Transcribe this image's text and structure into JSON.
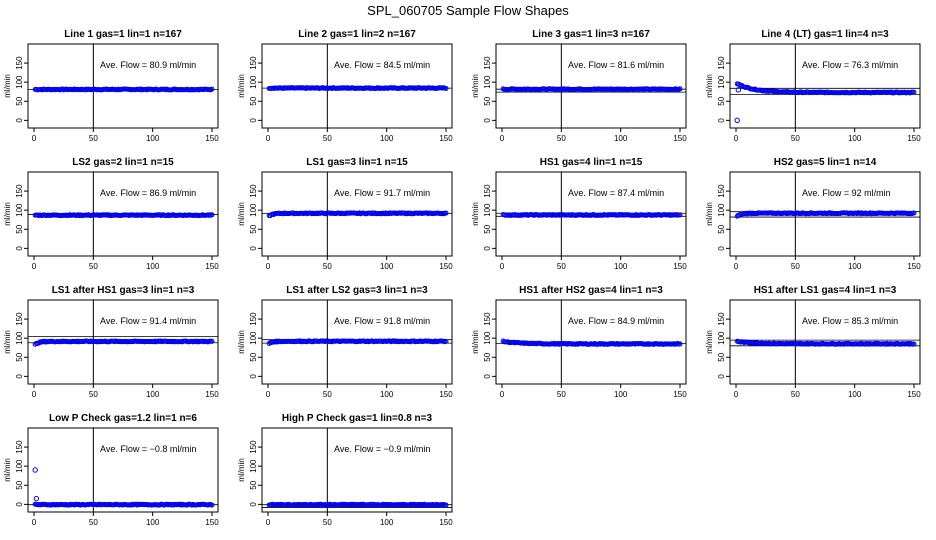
{
  "figure": {
    "title": "SPL_060705  Sample Flow Shapes"
  },
  "axes": {
    "ylabel": "ml/min",
    "xlim": [
      0,
      150
    ],
    "ylim": [
      -20,
      200
    ],
    "xticks": [
      "0",
      "50",
      "100",
      "150"
    ],
    "yticks": [
      "0",
      "50",
      "100",
      "150"
    ],
    "vline_x": 50,
    "annotation_prefix": "Ave. Flow = ",
    "annotation_unit": "ml/min"
  },
  "colors": {
    "points": "#0000ee",
    "axes": "#000000",
    "reference_lines": "#000000"
  },
  "chart_data": [
    {
      "type": "scatter",
      "title": "Line 1 gas=1 lin=1 n=167",
      "ylabel": "ml/min",
      "ave_flow": "80.9",
      "hlines": [
        80.9
      ],
      "profile": "flat",
      "y_plateau": 80.9,
      "y_start": 80.9,
      "outliers": []
    },
    {
      "type": "scatter",
      "title": "Line 2 gas=1 lin=2 n=167",
      "ylabel": "ml/min",
      "ave_flow": "84.5",
      "hlines": [
        84.5
      ],
      "profile": "flat",
      "y_plateau": 84.5,
      "y_start": 84.5,
      "outliers": []
    },
    {
      "type": "scatter",
      "title": "Line 3 gas=1 lin=3 n=167",
      "ylabel": "ml/min",
      "ave_flow": "81.6",
      "hlines": [
        81.6,
        74
      ],
      "profile": "flat",
      "y_plateau": 81.6,
      "y_start": 81.6,
      "outliers": []
    },
    {
      "type": "scatter",
      "title": "Line 4 (LT) gas=1 lin=4 n=3",
      "ylabel": "ml/min",
      "ave_flow": "76.3",
      "hlines": [
        84,
        68
      ],
      "profile": "decay",
      "y_plateau": 73,
      "y_start": 98,
      "outliers": [
        [
          1,
          0
        ],
        [
          2,
          80
        ]
      ]
    },
    {
      "type": "scatter",
      "title": "LS2 gas=2 lin=1 n=15",
      "ylabel": "ml/min",
      "ave_flow": "86.9",
      "hlines": [
        88.9
      ],
      "profile": "flat",
      "y_plateau": 86.9,
      "y_start": 86.9,
      "outliers": []
    },
    {
      "type": "scatter",
      "title": "LS1 gas=3 lin=1 n=15",
      "ylabel": "ml/min",
      "ave_flow": "91.7",
      "hlines": [
        91.7
      ],
      "profile": "rise",
      "y_plateau": 91.7,
      "y_start": 82,
      "outliers": []
    },
    {
      "type": "scatter",
      "title": "HS1 gas=4 lin=1 n=15",
      "ylabel": "ml/min",
      "ave_flow": "87.4",
      "hlines": [
        92,
        84
      ],
      "profile": "flat",
      "y_plateau": 87.4,
      "y_start": 87.4,
      "outliers": []
    },
    {
      "type": "scatter",
      "title": "HS2 gas=5 lin=1 n=14",
      "ylabel": "ml/min",
      "ave_flow": "92",
      "hlines": [
        96,
        82
      ],
      "profile": "rise",
      "y_plateau": 92,
      "y_start": 80,
      "outliers": []
    },
    {
      "type": "scatter",
      "title": "LS1 after HS1 gas=3 lin=1 n=3",
      "ylabel": "ml/min",
      "ave_flow": "91.4",
      "hlines": [
        104,
        88
      ],
      "profile": "rise",
      "y_plateau": 91.4,
      "y_start": 80,
      "outliers": []
    },
    {
      "type": "scatter",
      "title": "LS1 after LS2 gas=3 lin=1 n=3",
      "ylabel": "ml/min",
      "ave_flow": "91.8",
      "hlines": [
        96,
        87
      ],
      "profile": "rise",
      "y_plateau": 91.8,
      "y_start": 84,
      "outliers": []
    },
    {
      "type": "scatter",
      "title": "HS1 after HS2 gas=4 lin=1 n=3",
      "ylabel": "ml/min",
      "ave_flow": "84.9",
      "hlines": [
        86
      ],
      "profile": "decay",
      "y_plateau": 84.9,
      "y_start": 92,
      "outliers": []
    },
    {
      "type": "scatter",
      "title": "HS1 after LS1 gas=4 lin=1 n=3",
      "ylabel": "ml/min",
      "ave_flow": "85.3",
      "hlines": [
        95,
        80
      ],
      "profile": "decay",
      "y_plateau": 85.3,
      "y_start": 92,
      "outliers": []
    },
    {
      "type": "scatter",
      "title": "Low P Check gas=1.2 lin=1 n=6",
      "ylabel": "ml/min",
      "ave_flow": "−0.8",
      "hlines": [
        -0.8
      ],
      "profile": "flat",
      "y_plateau": -0.8,
      "y_start": -0.8,
      "outliers": [
        [
          1,
          90
        ],
        [
          2,
          15
        ]
      ]
    },
    {
      "type": "scatter",
      "title": "High P Check gas=1 lin=0.8 n=3",
      "ylabel": "ml/min",
      "ave_flow": "−0.9",
      "hlines": [
        -0.9,
        -8
      ],
      "profile": "flat",
      "y_plateau": -0.9,
      "y_start": -0.9,
      "outliers": []
    }
  ]
}
